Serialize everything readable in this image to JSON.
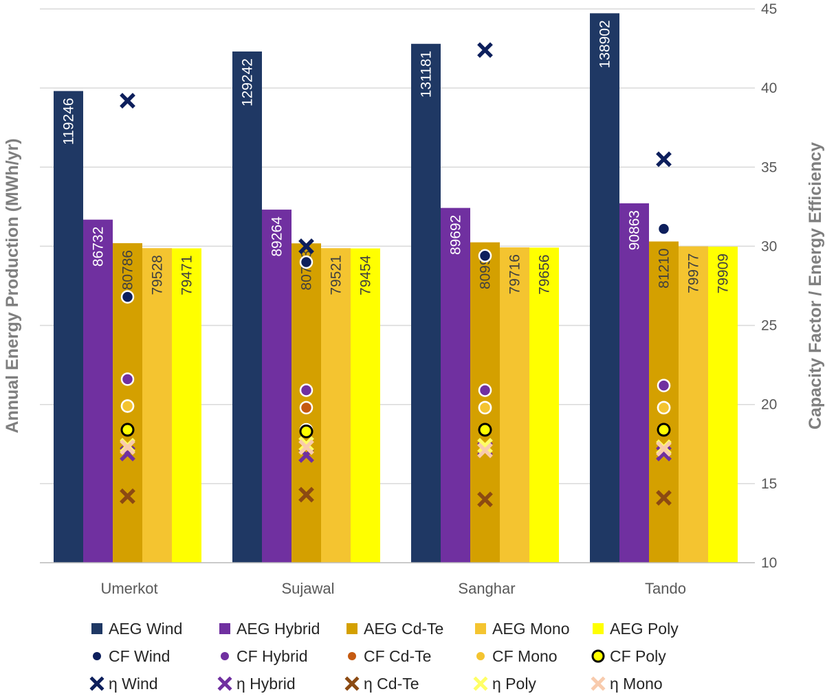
{
  "chart_data": {
    "type": "bar",
    "categories": [
      "Umerkot",
      "Sujawal",
      "Sanghar",
      "Tando"
    ],
    "ylabel_left": "Annual Energy Production (MWh/yr)",
    "ylabel_right": "Capacity Factor / Energy Efficiency",
    "left_axis_range": [
      0,
      140000
    ],
    "right_axis": {
      "range": [
        10,
        45
      ],
      "ticks": [
        10,
        15,
        20,
        25,
        30,
        35,
        40,
        45
      ]
    },
    "grid": true,
    "legend_position": "bottom",
    "bar_series": [
      {
        "name": "AEG Wind",
        "color": "#1f3864",
        "values": [
          119246,
          129242,
          131181,
          138902
        ]
      },
      {
        "name": "AEG Hybrid",
        "color": "#7030a0",
        "values": [
          86732,
          89264,
          89692,
          90863
        ]
      },
      {
        "name": "AEG Cd-Te",
        "color": "#d4a000",
        "values": [
          80786,
          80733,
          80995,
          81210
        ]
      },
      {
        "name": "AEG Mono",
        "color": "#f4c430",
        "values": [
          79528,
          79521,
          79716,
          79977
        ]
      },
      {
        "name": "AEG Poly",
        "color": "#ffff00",
        "values": [
          79471,
          79454,
          79656,
          79909
        ]
      }
    ],
    "marker_series": [
      {
        "name": "CF Wind",
        "marker": "dot",
        "color": "#0d1f5c",
        "values": [
          26.8,
          29.0,
          29.4,
          31.1
        ]
      },
      {
        "name": "CF Hybrid",
        "marker": "dot",
        "color": "#7030a0",
        "values": [
          21.6,
          20.9,
          20.9,
          21.2
        ]
      },
      {
        "name": "CF Cd-Te",
        "marker": "dot",
        "color": "#c55a11",
        "values": [
          19.9,
          19.8,
          19.8,
          19.8
        ]
      },
      {
        "name": "CF Mono",
        "marker": "dot",
        "color": "#f4c430",
        "values": [
          19.9,
          18.4,
          19.8,
          19.8
        ]
      },
      {
        "name": "CF Poly",
        "marker": "ring",
        "color": "#ffff00",
        "values": [
          18.4,
          18.3,
          18.4,
          18.4
        ]
      },
      {
        "name": "η Wind",
        "marker": "x",
        "color": "#0d1f5c",
        "values": [
          39.2,
          30.0,
          42.4,
          35.5
        ]
      },
      {
        "name": "η Hybrid",
        "marker": "x",
        "color": "#7030a0",
        "values": [
          16.9,
          16.8,
          17.2,
          16.9
        ]
      },
      {
        "name": "η Cd-Te",
        "marker": "x",
        "color": "#8c4a12",
        "values": [
          14.2,
          14.3,
          14.0,
          14.1
        ]
      },
      {
        "name": "η Poly",
        "marker": "x",
        "color": "#ffff66",
        "values": [
          17.4,
          17.5,
          17.4,
          17.3
        ]
      },
      {
        "name": "η Mono",
        "marker": "x",
        "color": "#f8cbad",
        "values": [
          17.3,
          17.3,
          17.1,
          17.2
        ]
      }
    ]
  }
}
